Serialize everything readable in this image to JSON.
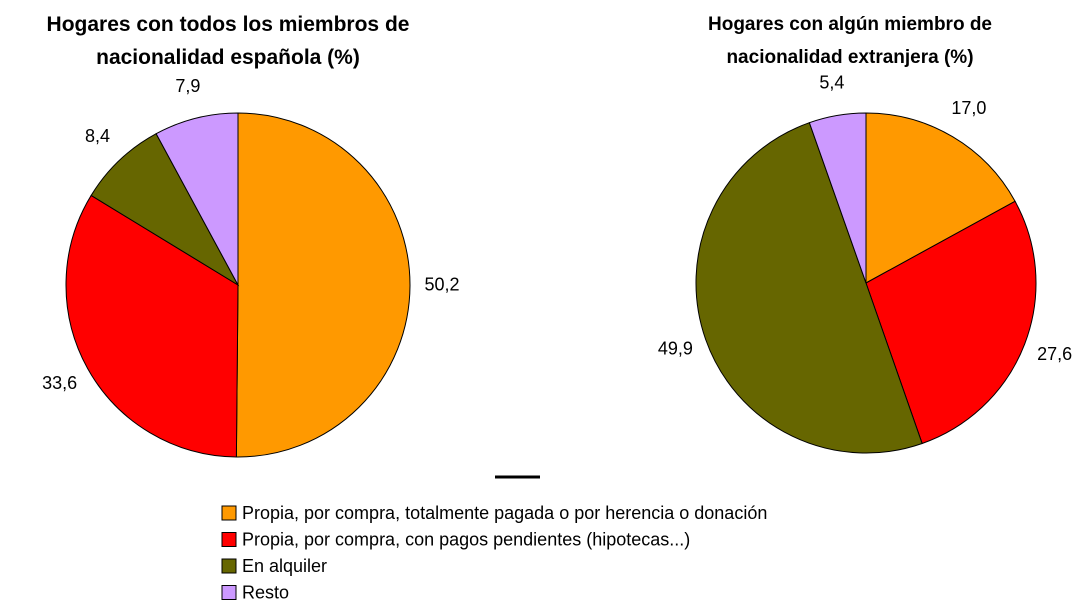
{
  "chart_data": [
    {
      "type": "pie",
      "title": "Hogares con todos los miembros de nacionalidad española (%)",
      "categories": [
        "Propia, por compra, totalmente pagada o por herencia o donación",
        "Propia, por compra, con pagos pendientes (hipotecas...)",
        "En alquiler",
        "Resto"
      ],
      "values": [
        50.2,
        33.6,
        8.4,
        7.9
      ],
      "value_labels": [
        "50,2",
        "33,6",
        "8,4",
        "7,9"
      ],
      "colors": [
        "#ff9900",
        "#ff0000",
        "#666600",
        "#cc99ff"
      ]
    },
    {
      "type": "pie",
      "title": "Hogares con algún miembro de nacionalidad extranjera (%)",
      "categories": [
        "Propia, por compra, totalmente pagada o por herencia o donación",
        "Propia, por compra, con pagos pendientes (hipotecas...)",
        "En alquiler",
        "Resto"
      ],
      "values": [
        17.0,
        27.6,
        49.9,
        5.4
      ],
      "value_labels": [
        "17,0",
        "27,6",
        "49,9",
        "5,4"
      ],
      "colors": [
        "#ff9900",
        "#ff0000",
        "#666600",
        "#cc99ff"
      ]
    }
  ]
}
